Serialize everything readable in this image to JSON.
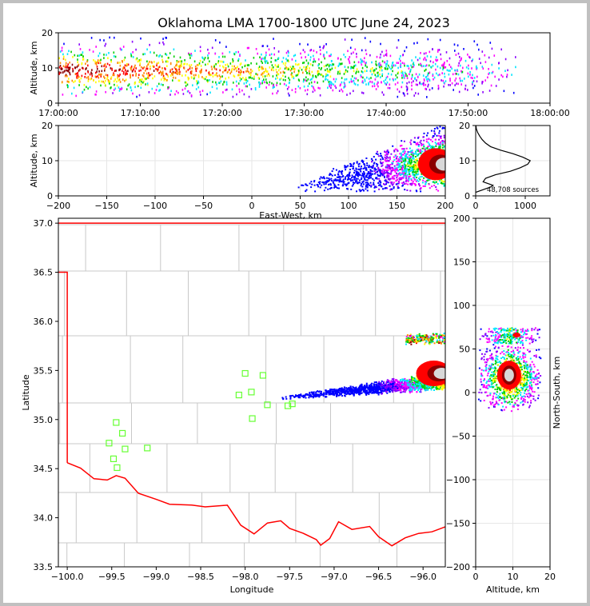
{
  "title": "Oklahoma LMA 1700-1800 UTC June 24, 2023",
  "colors": {
    "border_red": "#ff0000",
    "county_gray": "#c8c8c8",
    "station_green": "#66ff33",
    "grid": "#e6e6e6"
  },
  "chart_data": [
    {
      "type": "heatmap",
      "name": "time-altitude",
      "ylabel": "Altitude, km",
      "ylim": [
        0,
        20
      ],
      "yticks": [
        "0",
        "10",
        "20"
      ],
      "xlim": [
        "17:00:00",
        "18:00:00"
      ],
      "xticks": [
        "17:00:00",
        "17:10:00",
        "17:20:00",
        "17:30:00",
        "17:40:00",
        "17:50:00",
        "18:00:00"
      ],
      "activity_end": "17:56:00"
    },
    {
      "type": "heatmap",
      "name": "east-west-altitude",
      "xlabel": "East-West, km",
      "ylabel": "Altitude, km",
      "xlim": [
        -200,
        200
      ],
      "ylim": [
        0,
        20
      ],
      "xticks": [
        "−200",
        "−150",
        "−100",
        "−50",
        "0",
        "50",
        "100",
        "150",
        "200"
      ],
      "yticks": [
        "0",
        "10",
        "20"
      ]
    },
    {
      "type": "line",
      "name": "altitude-histogram",
      "xlim": [
        0,
        1500
      ],
      "ylim": [
        0,
        20
      ],
      "xticks": [
        "0",
        "1000"
      ],
      "yticks": [
        "0",
        "10",
        "20"
      ],
      "annotation": "48,708 sources",
      "profile": [
        [
          0,
          1
        ],
        [
          300,
          2.5
        ],
        [
          350,
          3.0
        ],
        [
          150,
          4
        ],
        [
          200,
          5
        ],
        [
          400,
          6
        ],
        [
          700,
          7
        ],
        [
          900,
          8
        ],
        [
          1050,
          9
        ],
        [
          1100,
          10
        ],
        [
          950,
          11
        ],
        [
          750,
          12
        ],
        [
          500,
          13
        ],
        [
          300,
          14
        ],
        [
          200,
          15
        ],
        [
          130,
          16
        ],
        [
          80,
          17
        ],
        [
          40,
          18
        ],
        [
          15,
          19
        ],
        [
          5,
          20
        ]
      ]
    },
    {
      "type": "heatmap",
      "name": "plan-view-map",
      "xlabel": "Longitude",
      "ylabel": "Latitude",
      "xlim": [
        -100.1,
        -95.75
      ],
      "ylim": [
        33.5,
        37.05
      ],
      "xticks": [
        "−100.0",
        "−99.5",
        "−99.0",
        "−98.5",
        "−98.0",
        "−97.5",
        "−97.0",
        "−96.5",
        "−96.0"
      ],
      "yticks": [
        "33.5",
        "34.0",
        "34.5",
        "35.0",
        "35.5",
        "36.0",
        "36.5",
        "37.0"
      ],
      "stations": [
        [
          -99.45,
          34.97
        ],
        [
          -99.38,
          34.86
        ],
        [
          -99.53,
          34.76
        ],
        [
          -99.35,
          34.7
        ],
        [
          -99.1,
          34.71
        ],
        [
          -99.48,
          34.6
        ],
        [
          -99.44,
          34.51
        ],
        [
          -98.0,
          35.47
        ],
        [
          -97.8,
          35.45
        ],
        [
          -97.93,
          35.28
        ],
        [
          -98.07,
          35.25
        ],
        [
          -97.75,
          35.15
        ],
        [
          -97.92,
          35.01
        ],
        [
          -97.52,
          35.14
        ],
        [
          -97.47,
          35.16
        ]
      ]
    },
    {
      "type": "heatmap",
      "name": "altitude-north-south",
      "xlabel": "Altitude, km",
      "ylabel": "North-South, km",
      "xlim": [
        0,
        20
      ],
      "ylim": [
        -200,
        200
      ],
      "xticks": [
        "0",
        "10",
        "20"
      ],
      "yticks": [
        "−200",
        "−150",
        "−100",
        "−50",
        "0",
        "50",
        "100",
        "150",
        "200"
      ]
    }
  ]
}
